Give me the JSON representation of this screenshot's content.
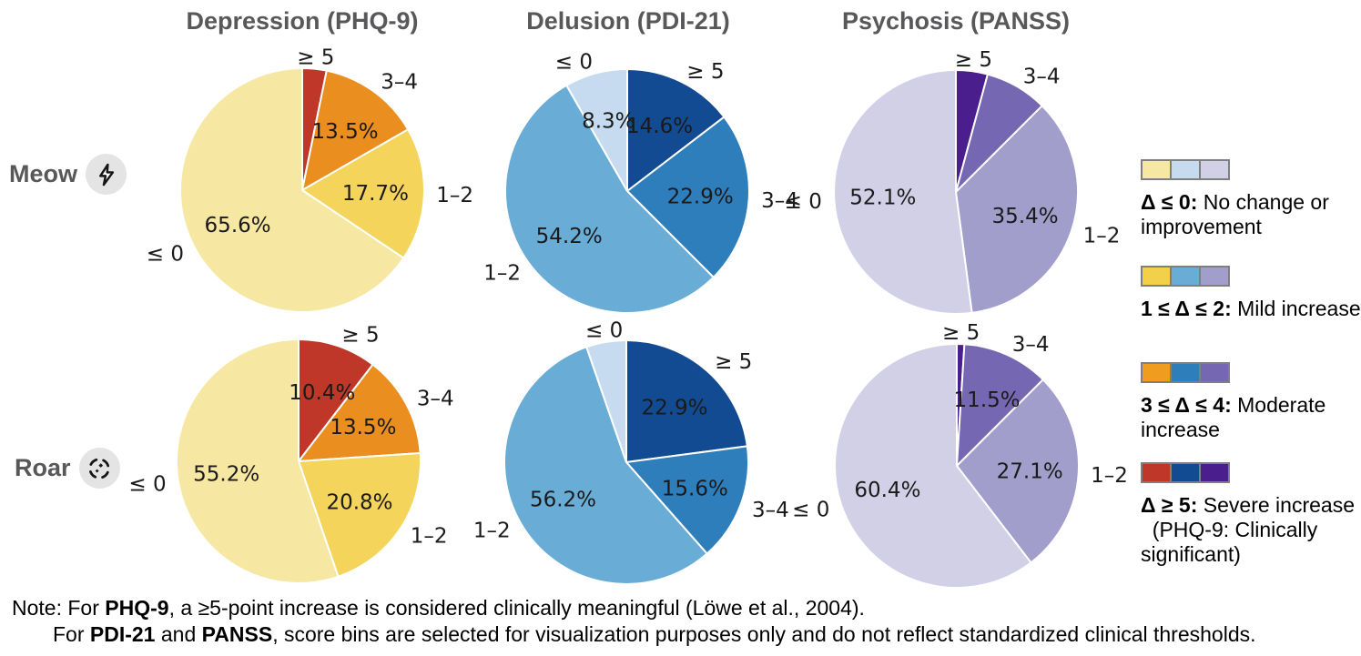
{
  "figure": {
    "column_titles": [
      "Depression (PHQ-9)",
      "Delusion (PDI-21)",
      "Psychosis (PANSS)"
    ],
    "rows": [
      {
        "label": "Meow",
        "icon": "lightning-bolt-icon"
      },
      {
        "label": "Roar",
        "icon": "dashed-circle-sparkle-icon"
      }
    ],
    "title_color": "#58585a",
    "background": "#ffffff"
  },
  "chart_data": [
    {
      "type": "pie",
      "row": "Meow",
      "column": "Depression (PHQ-9)",
      "start_angle": "top",
      "direction": "clockwise",
      "slices": [
        {
          "label": "≥ 5",
          "value": 3.2,
          "pct_label": null,
          "color": "#BE3728"
        },
        {
          "label": "3–4",
          "value": 13.5,
          "pct_label": "13.5%",
          "color": "#EB8E20"
        },
        {
          "label": "1–2",
          "value": 17.7,
          "pct_label": "17.7%",
          "color": "#F4D45A"
        },
        {
          "label": "≤ 0",
          "value": 65.6,
          "pct_label": "65.6%",
          "color": "#F6E7A3"
        }
      ]
    },
    {
      "type": "pie",
      "row": "Meow",
      "column": "Delusion (PDI-21)",
      "start_angle": "top",
      "direction": "clockwise",
      "slices": [
        {
          "label": "≥ 5",
          "value": 14.6,
          "pct_label": "14.6%",
          "color": "#134B92"
        },
        {
          "label": "3–4",
          "value": 22.9,
          "pct_label": "22.9%",
          "color": "#2F7EBC"
        },
        {
          "label": "1–2",
          "value": 54.2,
          "pct_label": "54.2%",
          "color": "#69ADD7"
        },
        {
          "label": "≤ 0",
          "value": 8.3,
          "pct_label": "8.3%",
          "color": "#C6DBEF"
        }
      ]
    },
    {
      "type": "pie",
      "row": "Meow",
      "column": "Psychosis (PANSS)",
      "start_angle": "top",
      "direction": "clockwise",
      "slices": [
        {
          "label": "≥ 5",
          "value": 4.2,
          "pct_label": null,
          "color": "#4A1E8C"
        },
        {
          "label": "3–4",
          "value": 8.3,
          "pct_label": null,
          "color": "#7567B2"
        },
        {
          "label": "1–2",
          "value": 35.4,
          "pct_label": "35.4%",
          "color": "#A29ECB"
        },
        {
          "label": "≤ 0",
          "value": 52.1,
          "pct_label": "52.1%",
          "color": "#D1D0E6"
        }
      ]
    },
    {
      "type": "pie",
      "row": "Roar",
      "column": "Depression (PHQ-9)",
      "start_angle": "top",
      "direction": "clockwise",
      "slices": [
        {
          "label": "≥ 5",
          "value": 10.4,
          "pct_label": "10.4%",
          "color": "#BE3728"
        },
        {
          "label": "3–4",
          "value": 13.5,
          "pct_label": "13.5%",
          "color": "#EB8E20"
        },
        {
          "label": "1–2",
          "value": 20.8,
          "pct_label": "20.8%",
          "color": "#F4D45A"
        },
        {
          "label": "≤ 0",
          "value": 55.2,
          "pct_label": "55.2%",
          "color": "#F6E7A3"
        }
      ]
    },
    {
      "type": "pie",
      "row": "Roar",
      "column": "Delusion (PDI-21)",
      "start_angle": "top",
      "direction": "clockwise",
      "slices": [
        {
          "label": "≥ 5",
          "value": 22.9,
          "pct_label": "22.9%",
          "color": "#134B92"
        },
        {
          "label": "3–4",
          "value": 15.6,
          "pct_label": "15.6%",
          "color": "#2F7EBC"
        },
        {
          "label": "1–2",
          "value": 56.2,
          "pct_label": "56.2%",
          "color": "#69ADD7"
        },
        {
          "label": "≤ 0",
          "value": 5.3,
          "pct_label": null,
          "color": "#C6DBEF"
        }
      ]
    },
    {
      "type": "pie",
      "row": "Roar",
      "column": "Psychosis (PANSS)",
      "start_angle": "top",
      "direction": "clockwise",
      "slices": [
        {
          "label": "≥ 5",
          "value": 1.0,
          "pct_label": null,
          "color": "#4A1E8C"
        },
        {
          "label": "3–4",
          "value": 11.5,
          "pct_label": "11.5%",
          "color": "#7567B2"
        },
        {
          "label": "1–2",
          "value": 27.1,
          "pct_label": "27.1%",
          "color": "#A29ECB"
        },
        {
          "label": "≤ 0",
          "value": 60.4,
          "pct_label": "60.4%",
          "color": "#D1D0E6"
        }
      ]
    }
  ],
  "legend": [
    {
      "colors": [
        "#F6E7A3",
        "#C6DBEF",
        "#D1D0E6"
      ],
      "bold": "Δ ≤ 0:",
      "text": " No change or\nimprovement"
    },
    {
      "colors": [
        "#F2D049",
        "#69ADD7",
        "#A29ECB"
      ],
      "bold": "1 ≤ Δ ≤ 2:",
      "text": " Mild increase"
    },
    {
      "colors": [
        "#F09C1E",
        "#2F7EBC",
        "#7567B2"
      ],
      "bold": "3 ≤ Δ ≤ 4:",
      "text": " Moderate\nincrease"
    },
    {
      "colors": [
        "#BE3728",
        "#134B92",
        "#4A1E8C"
      ],
      "bold": "Δ ≥ 5:",
      "text": " Severe increase\n  (PHQ-9: Clinically\nsignificant)"
    }
  ],
  "note": {
    "line1_parts": [
      {
        "t": "Note: For ",
        "b": false
      },
      {
        "t": "PHQ-9",
        "b": true
      },
      {
        "t": ", a ≥5-point increase is considered clinically meaningful (Löwe et al., 2004).",
        "b": false
      }
    ],
    "line2_parts": [
      {
        "t": "For ",
        "b": false
      },
      {
        "t": "PDI-21",
        "b": true
      },
      {
        "t": " and ",
        "b": false
      },
      {
        "t": "PANSS",
        "b": true
      },
      {
        "t": ", score bins are selected for visualization purposes only and do not reflect standardized clinical thresholds.",
        "b": false
      }
    ]
  }
}
